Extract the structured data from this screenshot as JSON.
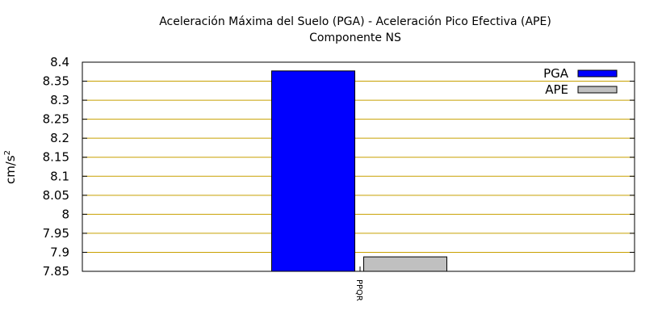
{
  "chart_data": {
    "type": "bar",
    "title": "Aceleración Máxima del Suelo (PGA) -  Aceleración Pico Efectiva (APE)",
    "subtitle": "Componente NS",
    "ylabel_base": "cm/s",
    "ylabel_exp": "2",
    "xlabel": "",
    "categories": [
      "PPQR"
    ],
    "series": [
      {
        "name": "PGA",
        "color": "#0000ff",
        "values": [
          8.377
        ]
      },
      {
        "name": "APE",
        "color": "#c0c0c0",
        "values": [
          7.888
        ]
      }
    ],
    "ylim": [
      7.85,
      8.4
    ],
    "yticks": [
      "7.85",
      "7.9",
      "7.95",
      "8",
      "8.05",
      "8.1",
      "8.15",
      "8.2",
      "8.25",
      "8.3",
      "8.35",
      "8.4"
    ],
    "grid": true,
    "grid_color": "#c8a000",
    "legend_position": "top-right"
  }
}
